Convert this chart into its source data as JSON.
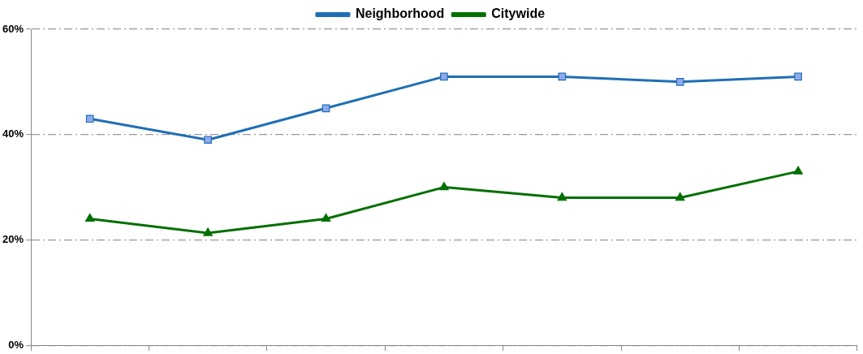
{
  "chart_data": {
    "type": "line",
    "categories": [
      null,
      null,
      null,
      null,
      null,
      null,
      null
    ],
    "series": [
      {
        "name": "Neighborhood",
        "color": "#1f6fb5",
        "marker": "square",
        "values": [
          43,
          39,
          45,
          51,
          51,
          50,
          51
        ]
      },
      {
        "name": "Citywide",
        "color": "#007000",
        "marker": "triangle",
        "values": [
          24,
          21.3,
          24,
          30,
          28,
          28,
          33
        ]
      }
    ],
    "ylim": [
      0,
      60
    ],
    "yticks": [
      {
        "value": 0,
        "label": "0%"
      },
      {
        "value": 20,
        "label": "20%"
      },
      {
        "value": 40,
        "label": "40%"
      },
      {
        "value": 60,
        "label": "60%"
      }
    ],
    "grid": "y",
    "legend": "top",
    "tick_labels": "y"
  }
}
